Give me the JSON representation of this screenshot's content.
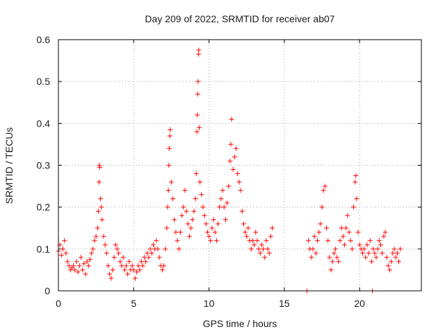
{
  "chart_data": {
    "type": "scatter",
    "title": "Day 209 of 2022, SRMTID for receiver ab07",
    "xlabel": "GPS time / hours",
    "ylabel": "SRMTID / TECUs",
    "xlim": [
      0,
      24.1
    ],
    "ylim": [
      0,
      0.6
    ],
    "x_ticks": [
      0,
      5,
      10,
      15,
      20
    ],
    "y_ticks": [
      0,
      0.1,
      0.2,
      0.3,
      0.4,
      0.5,
      0.6
    ],
    "x_tick_labels": [
      "0",
      "5",
      "10",
      "15",
      "20"
    ],
    "y_tick_labels": [
      "0",
      "0.1",
      "0.2",
      "0.3",
      "0.4",
      "0.5",
      "0.6"
    ],
    "grid": true,
    "marker": "plus",
    "color": "#ff0000",
    "series": [
      {
        "name": "SRMTID",
        "points": [
          [
            0.0,
            0.095
          ],
          [
            0.1,
            0.11
          ],
          [
            0.2,
            0.085
          ],
          [
            0.3,
            0.1
          ],
          [
            0.4,
            0.12
          ],
          [
            0.5,
            0.09
          ],
          [
            0.6,
            0.07
          ],
          [
            0.7,
            0.06
          ],
          [
            0.8,
            0.05
          ],
          [
            0.9,
            0.055
          ],
          [
            1.0,
            0.06
          ],
          [
            1.1,
            0.05
          ],
          [
            1.2,
            0.07
          ],
          [
            1.3,
            0.045
          ],
          [
            1.4,
            0.06
          ],
          [
            1.5,
            0.08
          ],
          [
            1.6,
            0.05
          ],
          [
            1.7,
            0.065
          ],
          [
            1.8,
            0.04
          ],
          [
            1.9,
            0.07
          ],
          [
            2.0,
            0.06
          ],
          [
            2.1,
            0.075
          ],
          [
            2.2,
            0.09
          ],
          [
            2.3,
            0.1
          ],
          [
            2.4,
            0.12
          ],
          [
            2.5,
            0.13
          ],
          [
            2.6,
            0.15
          ],
          [
            2.65,
            0.19
          ],
          [
            2.7,
            0.26
          ],
          [
            2.72,
            0.3
          ],
          [
            2.75,
            0.295
          ],
          [
            2.8,
            0.22
          ],
          [
            2.85,
            0.2
          ],
          [
            2.9,
            0.17
          ],
          [
            3.0,
            0.13
          ],
          [
            3.1,
            0.11
          ],
          [
            3.2,
            0.09
          ],
          [
            3.3,
            0.06
          ],
          [
            3.4,
            0.04
          ],
          [
            3.5,
            0.03
          ],
          [
            3.6,
            0.05
          ],
          [
            3.7,
            0.08
          ],
          [
            3.8,
            0.11
          ],
          [
            3.9,
            0.1
          ],
          [
            4.0,
            0.09
          ],
          [
            4.1,
            0.07
          ],
          [
            4.2,
            0.06
          ],
          [
            4.3,
            0.08
          ],
          [
            4.4,
            0.05
          ],
          [
            4.5,
            0.06
          ],
          [
            4.6,
            0.04
          ],
          [
            4.7,
            0.07
          ],
          [
            4.8,
            0.05
          ],
          [
            4.9,
            0.06
          ],
          [
            5.0,
            0.05
          ],
          [
            5.1,
            0.03
          ],
          [
            5.2,
            0.045
          ],
          [
            5.3,
            0.06
          ],
          [
            5.4,
            0.05
          ],
          [
            5.5,
            0.07
          ],
          [
            5.6,
            0.06
          ],
          [
            5.7,
            0.08
          ],
          [
            5.8,
            0.07
          ],
          [
            5.9,
            0.09
          ],
          [
            6.0,
            0.08
          ],
          [
            6.1,
            0.1
          ],
          [
            6.2,
            0.09
          ],
          [
            6.3,
            0.11
          ],
          [
            6.4,
            0.1
          ],
          [
            6.5,
            0.12
          ],
          [
            6.6,
            0.1
          ],
          [
            6.7,
            0.08
          ],
          [
            6.8,
            0.06
          ],
          [
            6.9,
            0.05
          ],
          [
            7.0,
            0.06
          ],
          [
            7.1,
            0.1
          ],
          [
            7.2,
            0.15
          ],
          [
            7.25,
            0.2
          ],
          [
            7.3,
            0.24
          ],
          [
            7.33,
            0.3
          ],
          [
            7.36,
            0.34
          ],
          [
            7.4,
            0.37
          ],
          [
            7.42,
            0.385
          ],
          [
            7.5,
            0.26
          ],
          [
            7.6,
            0.22
          ],
          [
            7.7,
            0.17
          ],
          [
            7.8,
            0.14
          ],
          [
            7.9,
            0.12
          ],
          [
            8.0,
            0.1
          ],
          [
            8.1,
            0.14
          ],
          [
            8.2,
            0.18
          ],
          [
            8.3,
            0.2
          ],
          [
            8.4,
            0.24
          ],
          [
            8.5,
            0.19
          ],
          [
            8.6,
            0.16
          ],
          [
            8.7,
            0.13
          ],
          [
            8.8,
            0.15
          ],
          [
            8.9,
            0.17
          ],
          [
            9.0,
            0.19
          ],
          [
            9.1,
            0.22
          ],
          [
            9.15,
            0.28
          ],
          [
            9.2,
            0.38
          ],
          [
            9.22,
            0.42
          ],
          [
            9.25,
            0.47
          ],
          [
            9.27,
            0.5
          ],
          [
            9.3,
            0.565
          ],
          [
            9.32,
            0.575
          ],
          [
            9.35,
            0.39
          ],
          [
            9.4,
            0.26
          ],
          [
            9.5,
            0.23
          ],
          [
            9.6,
            0.2
          ],
          [
            9.7,
            0.18
          ],
          [
            9.8,
            0.16
          ],
          [
            9.9,
            0.14
          ],
          [
            10.0,
            0.13
          ],
          [
            10.1,
            0.12
          ],
          [
            10.2,
            0.15
          ],
          [
            10.3,
            0.17
          ],
          [
            10.4,
            0.14
          ],
          [
            10.5,
            0.12
          ],
          [
            10.6,
            0.16
          ],
          [
            10.7,
            0.2
          ],
          [
            10.8,
            0.22
          ],
          [
            10.9,
            0.24
          ],
          [
            11.0,
            0.2
          ],
          [
            11.1,
            0.17
          ],
          [
            11.2,
            0.21
          ],
          [
            11.3,
            0.25
          ],
          [
            11.4,
            0.31
          ],
          [
            11.45,
            0.35
          ],
          [
            11.5,
            0.41
          ],
          [
            11.6,
            0.29
          ],
          [
            11.7,
            0.32
          ],
          [
            11.8,
            0.34
          ],
          [
            11.9,
            0.28
          ],
          [
            12.0,
            0.26
          ],
          [
            12.1,
            0.24
          ],
          [
            12.2,
            0.19
          ],
          [
            12.3,
            0.16
          ],
          [
            12.4,
            0.14
          ],
          [
            12.5,
            0.13
          ],
          [
            12.6,
            0.15
          ],
          [
            12.7,
            0.12
          ],
          [
            12.8,
            0.1
          ],
          [
            12.9,
            0.12
          ],
          [
            13.0,
            0.11
          ],
          [
            13.1,
            0.14
          ],
          [
            13.2,
            0.12
          ],
          [
            13.3,
            0.1
          ],
          [
            13.4,
            0.09
          ],
          [
            13.5,
            0.11
          ],
          [
            13.6,
            0.1
          ],
          [
            13.7,
            0.08
          ],
          [
            13.8,
            0.12
          ],
          [
            13.9,
            0.1
          ],
          [
            14.0,
            0.09
          ],
          [
            14.1,
            0.13
          ],
          [
            14.2,
            0.15
          ],
          [
            16.5,
            0.0
          ],
          [
            16.6,
            0.12
          ],
          [
            16.7,
            0.1
          ],
          [
            16.8,
            0.08
          ],
          [
            16.9,
            0.1
          ],
          [
            17.0,
            0.13
          ],
          [
            17.1,
            0.09
          ],
          [
            17.2,
            0.12
          ],
          [
            17.3,
            0.14
          ],
          [
            17.4,
            0.16
          ],
          [
            17.5,
            0.2
          ],
          [
            17.6,
            0.24
          ],
          [
            17.7,
            0.25
          ],
          [
            17.8,
            0.15
          ],
          [
            17.9,
            0.12
          ],
          [
            18.0,
            0.08
          ],
          [
            18.1,
            0.05
          ],
          [
            18.2,
            0.07
          ],
          [
            18.3,
            0.09
          ],
          [
            18.4,
            0.1
          ],
          [
            18.5,
            0.08
          ],
          [
            18.6,
            0.07
          ],
          [
            18.7,
            0.12
          ],
          [
            18.8,
            0.15
          ],
          [
            18.9,
            0.13
          ],
          [
            19.0,
            0.11
          ],
          [
            19.1,
            0.15
          ],
          [
            19.2,
            0.18
          ],
          [
            19.3,
            0.14
          ],
          [
            19.4,
            0.12
          ],
          [
            19.5,
            0.1
          ],
          [
            19.6,
            0.2
          ],
          [
            19.7,
            0.26
          ],
          [
            19.75,
            0.275
          ],
          [
            19.8,
            0.22
          ],
          [
            19.9,
            0.14
          ],
          [
            20.0,
            0.11
          ],
          [
            20.1,
            0.1
          ],
          [
            20.2,
            0.09
          ],
          [
            20.3,
            0.1
          ],
          [
            20.4,
            0.08
          ],
          [
            20.5,
            0.11
          ],
          [
            20.6,
            0.09
          ],
          [
            20.7,
            0.12
          ],
          [
            20.8,
            0.07
          ],
          [
            20.85,
            0.0
          ],
          [
            20.9,
            0.1
          ],
          [
            21.0,
            0.09
          ],
          [
            21.1,
            0.08
          ],
          [
            21.2,
            0.1
          ],
          [
            21.3,
            0.12
          ],
          [
            21.4,
            0.11
          ],
          [
            21.5,
            0.09
          ],
          [
            21.6,
            0.13
          ],
          [
            21.7,
            0.14
          ],
          [
            21.8,
            0.08
          ],
          [
            21.9,
            0.06
          ],
          [
            22.0,
            0.05
          ],
          [
            22.1,
            0.07
          ],
          [
            22.2,
            0.09
          ],
          [
            22.3,
            0.1
          ],
          [
            22.4,
            0.08
          ],
          [
            22.5,
            0.09
          ],
          [
            22.6,
            0.07
          ],
          [
            22.7,
            0.1
          ]
        ]
      }
    ]
  }
}
